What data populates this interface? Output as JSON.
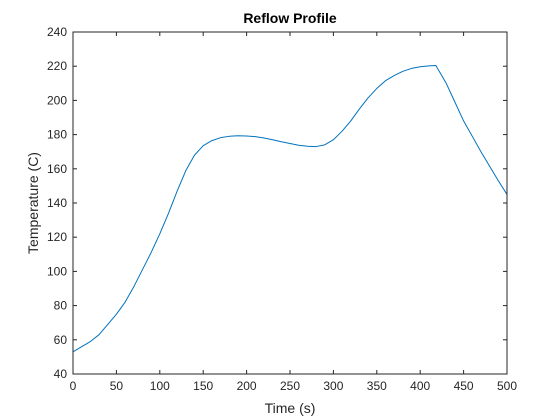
{
  "chart_data": {
    "type": "line",
    "title": "Reflow Profile",
    "xlabel": "Time (s)",
    "ylabel": "Temperature (C)",
    "xlim": [
      0,
      500
    ],
    "ylim": [
      40,
      240
    ],
    "xticks": [
      0,
      50,
      100,
      150,
      200,
      250,
      300,
      350,
      400,
      450,
      500
    ],
    "yticks": [
      40,
      60,
      80,
      100,
      120,
      140,
      160,
      180,
      200,
      220,
      240
    ],
    "grid": false,
    "line_color": "#0072BD",
    "series": [
      {
        "x": [
          0,
          10,
          20,
          30,
          40,
          50,
          60,
          70,
          80,
          90,
          100,
          110,
          120,
          130,
          140,
          150,
          160,
          170,
          180,
          190,
          200,
          210,
          220,
          230,
          240,
          250,
          260,
          270,
          280,
          290,
          300,
          310,
          320,
          330,
          340,
          350,
          360,
          370,
          380,
          390,
          400,
          410,
          418,
          430,
          440,
          450,
          460,
          470,
          480,
          490,
          500
        ],
        "y": [
          53,
          56,
          59,
          63,
          69,
          75,
          82,
          91,
          101,
          111,
          122,
          134,
          147,
          159,
          168,
          173.5,
          176.5,
          178.2,
          179,
          179.3,
          179.2,
          178.8,
          178,
          177,
          175.8,
          174.8,
          173.8,
          173.2,
          173,
          174,
          177,
          182,
          188,
          195,
          201.5,
          207,
          211.5,
          214.5,
          217,
          218.7,
          219.7,
          220.2,
          220.4,
          210,
          199,
          188,
          179,
          170,
          161.5,
          153,
          145
        ]
      }
    ]
  }
}
